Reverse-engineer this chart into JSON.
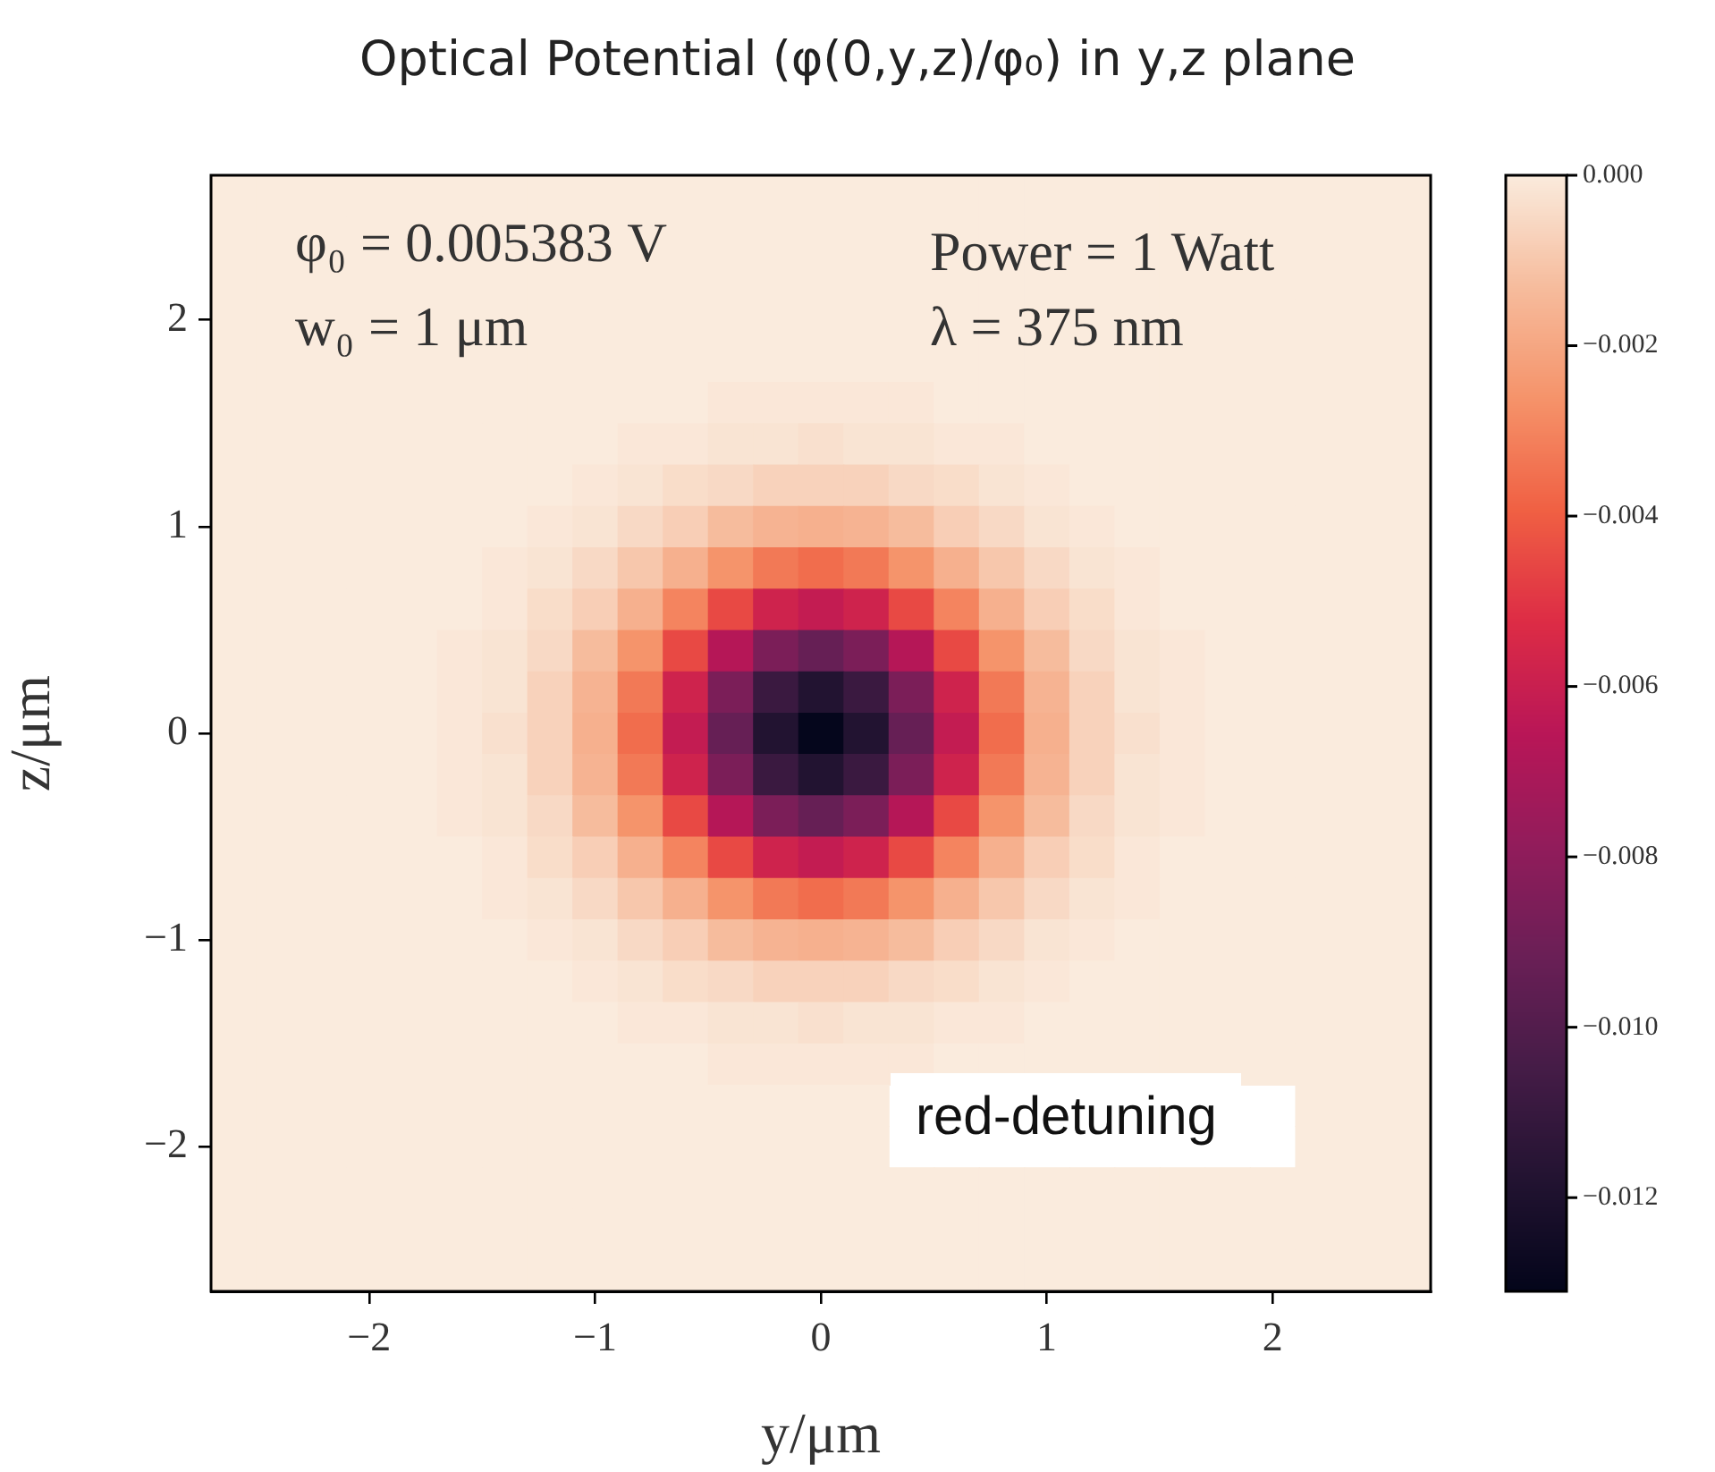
{
  "chart_data": {
    "type": "heatmap",
    "title": "Optical Potential (φ(0,y,z)/φ₀) in y,z plane",
    "xlabel": "y/μm",
    "ylabel": "z/μm",
    "annotations": [
      "φ₀ = 0.005383  V",
      "w₀ = 1  μm",
      "Power = 1  Watt",
      "λ = 375  nm",
      "red-detuning"
    ],
    "x": [
      -2.6,
      -2.4,
      -2.2,
      -2.0,
      -1.8,
      -1.6,
      -1.4,
      -1.2,
      -1.0,
      -0.8,
      -0.6,
      -0.4,
      -0.2,
      0,
      0.2,
      0.4,
      0.6,
      0.8,
      1.0,
      1.2,
      1.4,
      1.6,
      1.8,
      2.0,
      2.2,
      2.4,
      2.6
    ],
    "y": [
      2.6,
      2.4,
      2.2,
      2.0,
      1.8,
      1.6,
      1.4,
      1.2,
      1.0,
      0.8,
      0.6,
      0.4,
      0.2,
      0,
      -0.2,
      -0.4,
      -0.6,
      -0.8,
      -1.0,
      -1.2,
      -1.4,
      -1.6,
      -1.8,
      -2.0,
      -2.2,
      -2.4,
      -2.6
    ],
    "xlim": [
      -2.7,
      2.7
    ],
    "ylim": [
      -2.7,
      2.7
    ],
    "xticks": [
      {
        "value": -2,
        "label": "−2"
      },
      {
        "value": -1,
        "label": "−1"
      },
      0,
      1,
      2
    ],
    "yticks": [
      {
        "value": -2,
        "label": "−2"
      },
      {
        "value": -1,
        "label": "−1"
      },
      0,
      1,
      2
    ],
    "clim": [
      -0.0131,
      0
    ],
    "cticks": [
      {
        "value": 0,
        "label": "0.000"
      },
      {
        "value": -0.002,
        "label": "−0.002"
      },
      {
        "value": -0.004,
        "label": "−0.004"
      },
      {
        "value": -0.006,
        "label": "−0.006"
      },
      {
        "value": -0.008,
        "label": "−0.008"
      },
      {
        "value": -0.01,
        "label": "−0.010"
      },
      {
        "value": -0.012,
        "label": "−0.012"
      }
    ],
    "cells": [
      [
        0,
        0,
        0,
        0,
        0,
        0,
        0,
        0,
        0,
        0,
        0,
        0,
        0,
        0,
        0,
        0,
        0,
        0,
        0,
        0,
        0,
        0,
        0,
        0,
        0,
        0,
        0
      ],
      [
        0,
        0,
        0,
        0,
        0,
        0,
        0,
        0,
        0,
        0,
        0,
        0,
        0,
        0,
        0,
        0,
        0,
        0,
        0,
        0,
        0,
        0,
        0,
        0,
        0,
        0,
        0
      ],
      [
        0,
        0,
        0,
        0,
        0,
        0,
        0,
        0,
        0,
        0,
        0,
        0,
        0,
        0,
        0,
        0,
        0,
        0,
        0,
        0,
        0,
        0,
        0,
        0,
        0,
        0,
        0
      ],
      [
        0,
        0,
        0,
        0,
        0,
        0,
        0,
        0,
        0,
        0,
        0,
        0,
        0,
        0,
        0,
        0,
        0,
        0,
        0,
        0,
        0,
        0,
        0,
        0,
        0,
        0,
        0
      ],
      [
        0,
        0,
        0,
        0,
        0,
        0,
        0,
        0,
        0,
        0,
        0,
        0,
        0,
        0,
        0,
        0,
        0,
        0,
        0,
        0,
        0,
        0,
        0,
        0,
        0,
        0,
        0
      ],
      [
        0,
        0,
        0,
        0,
        0,
        0,
        0,
        0,
        0,
        0,
        0,
        -0.0001,
        -0.0001,
        -0.0001,
        -0.0001,
        -0.0001,
        0,
        0,
        0,
        0,
        0,
        0,
        0,
        0,
        0,
        0,
        0
      ],
      [
        0,
        0,
        0,
        0,
        0,
        0,
        0,
        0,
        0,
        -0.0001,
        -0.0001,
        -0.0002,
        -0.0002,
        -0.0003,
        -0.0002,
        -0.0002,
        -0.0001,
        -0.0001,
        0,
        0,
        0,
        0,
        0,
        0,
        0,
        0,
        0
      ],
      [
        0,
        0,
        0,
        0,
        0,
        0,
        0,
        0,
        -0.0001,
        -0.0002,
        -0.0004,
        -0.0005,
        -0.0007,
        -0.0007,
        -0.0007,
        -0.0005,
        -0.0004,
        -0.0002,
        -0.0001,
        0,
        0,
        0,
        0,
        0,
        0,
        0,
        0
      ],
      [
        0,
        0,
        0,
        0,
        0,
        0,
        0,
        -0.0001,
        -0.0002,
        -0.0005,
        -0.0008,
        -0.0013,
        -0.0016,
        -0.0017,
        -0.0016,
        -0.0013,
        -0.0008,
        -0.0005,
        -0.0002,
        -0.0001,
        0,
        0,
        0,
        0,
        0,
        0,
        0
      ],
      [
        0,
        0,
        0,
        0,
        0,
        0,
        -0.0001,
        -0.0002,
        -0.0005,
        -0.001,
        -0.0017,
        -0.0026,
        -0.0033,
        -0.0036,
        -0.0033,
        -0.0026,
        -0.0017,
        -0.001,
        -0.0005,
        -0.0002,
        -0.0001,
        0,
        0,
        0,
        0,
        0,
        0
      ],
      [
        0,
        0,
        0,
        0,
        0,
        0,
        -0.0001,
        -0.0004,
        -0.0008,
        -0.0017,
        -0.003,
        -0.0045,
        -0.0058,
        -0.0062,
        -0.0058,
        -0.0045,
        -0.003,
        -0.0017,
        -0.0008,
        -0.0004,
        -0.0001,
        0,
        0,
        0,
        0,
        0,
        0
      ],
      [
        0,
        0,
        0,
        0,
        0,
        -0.0001,
        -0.0002,
        -0.0005,
        -0.0013,
        -0.0026,
        -0.0045,
        -0.0067,
        -0.0086,
        -0.0093,
        -0.0086,
        -0.0067,
        -0.0045,
        -0.0026,
        -0.0013,
        -0.0005,
        -0.0002,
        -0.0001,
        0,
        0,
        0,
        0,
        0
      ],
      [
        0,
        0,
        0,
        0,
        0,
        -0.0001,
        -0.0002,
        -0.0007,
        -0.0016,
        -0.0033,
        -0.0058,
        -0.0086,
        -0.0109,
        -0.0118,
        -0.0109,
        -0.0086,
        -0.0058,
        -0.0033,
        -0.0016,
        -0.0007,
        -0.0002,
        -0.0001,
        0,
        0,
        0,
        0,
        0
      ],
      [
        0,
        0,
        0,
        0,
        0,
        -0.0001,
        -0.0003,
        -0.0007,
        -0.0017,
        -0.0036,
        -0.0062,
        -0.0093,
        -0.0118,
        -0.013,
        -0.0118,
        -0.0093,
        -0.0062,
        -0.0036,
        -0.0017,
        -0.0007,
        -0.0003,
        -0.0001,
        0,
        0,
        0,
        0,
        0
      ],
      [
        0,
        0,
        0,
        0,
        0,
        -0.0001,
        -0.0002,
        -0.0007,
        -0.0016,
        -0.0033,
        -0.0058,
        -0.0086,
        -0.0109,
        -0.0118,
        -0.0109,
        -0.0086,
        -0.0058,
        -0.0033,
        -0.0016,
        -0.0007,
        -0.0002,
        -0.0001,
        0,
        0,
        0,
        0,
        0
      ],
      [
        0,
        0,
        0,
        0,
        0,
        -0.0001,
        -0.0002,
        -0.0005,
        -0.0013,
        -0.0026,
        -0.0045,
        -0.0067,
        -0.0086,
        -0.0093,
        -0.0086,
        -0.0067,
        -0.0045,
        -0.0026,
        -0.0013,
        -0.0005,
        -0.0002,
        -0.0001,
        0,
        0,
        0,
        0,
        0
      ],
      [
        0,
        0,
        0,
        0,
        0,
        0,
        -0.0001,
        -0.0004,
        -0.0008,
        -0.0017,
        -0.003,
        -0.0045,
        -0.0058,
        -0.0062,
        -0.0058,
        -0.0045,
        -0.003,
        -0.0017,
        -0.0008,
        -0.0004,
        -0.0001,
        0,
        0,
        0,
        0,
        0,
        0
      ],
      [
        0,
        0,
        0,
        0,
        0,
        0,
        -0.0001,
        -0.0002,
        -0.0005,
        -0.001,
        -0.0017,
        -0.0026,
        -0.0033,
        -0.0036,
        -0.0033,
        -0.0026,
        -0.0017,
        -0.001,
        -0.0005,
        -0.0002,
        -0.0001,
        0,
        0,
        0,
        0,
        0,
        0
      ],
      [
        0,
        0,
        0,
        0,
        0,
        0,
        0,
        -0.0001,
        -0.0002,
        -0.0005,
        -0.0008,
        -0.0013,
        -0.0016,
        -0.0017,
        -0.0016,
        -0.0013,
        -0.0008,
        -0.0005,
        -0.0002,
        -0.0001,
        0,
        0,
        0,
        0,
        0,
        0,
        0
      ],
      [
        0,
        0,
        0,
        0,
        0,
        0,
        0,
        0,
        -0.0001,
        -0.0002,
        -0.0004,
        -0.0005,
        -0.0007,
        -0.0007,
        -0.0007,
        -0.0005,
        -0.0004,
        -0.0002,
        -0.0001,
        0,
        0,
        0,
        0,
        0,
        0,
        0,
        0
      ],
      [
        0,
        0,
        0,
        0,
        0,
        0,
        0,
        0,
        0,
        -0.0001,
        -0.0001,
        -0.0002,
        -0.0002,
        -0.0003,
        -0.0002,
        -0.0002,
        -0.0001,
        -0.0001,
        0,
        0,
        0,
        0,
        0,
        0,
        0,
        0,
        0
      ],
      [
        0,
        0,
        0,
        0,
        0,
        0,
        0,
        0,
        0,
        0,
        0,
        -0.0001,
        -0.0001,
        -0.0001,
        -0.0001,
        -0.0001,
        0,
        0,
        0,
        0,
        0,
        0,
        0,
        0,
        0,
        0,
        0
      ],
      [
        0,
        0,
        0,
        0,
        0,
        0,
        0,
        0,
        0,
        0,
        0,
        0,
        0,
        0,
        0,
        null,
        null,
        null,
        null,
        null,
        null,
        null,
        null,
        null,
        0,
        0,
        0
      ],
      [
        0,
        0,
        0,
        0,
        0,
        0,
        0,
        0,
        0,
        0,
        0,
        0,
        0,
        0,
        0,
        null,
        null,
        null,
        null,
        null,
        null,
        null,
        null,
        null,
        0,
        0,
        0
      ],
      [
        0,
        0,
        0,
        0,
        0,
        0,
        0,
        0,
        0,
        0,
        0,
        0,
        0,
        0,
        0,
        0,
        0,
        0,
        0,
        0,
        0,
        0,
        0,
        0,
        0,
        0,
        0
      ],
      [
        0,
        0,
        0,
        0,
        0,
        0,
        0,
        0,
        0,
        0,
        0,
        0,
        0,
        0,
        0,
        0,
        0,
        0,
        0,
        0,
        0,
        0,
        0,
        0,
        0,
        0,
        0
      ],
      [
        0,
        0,
        0,
        0,
        0,
        0,
        0,
        0,
        0,
        0,
        0,
        0,
        0,
        0,
        0,
        0,
        0,
        0,
        0,
        0,
        0,
        0,
        0,
        0,
        0,
        0,
        0
      ]
    ]
  }
}
